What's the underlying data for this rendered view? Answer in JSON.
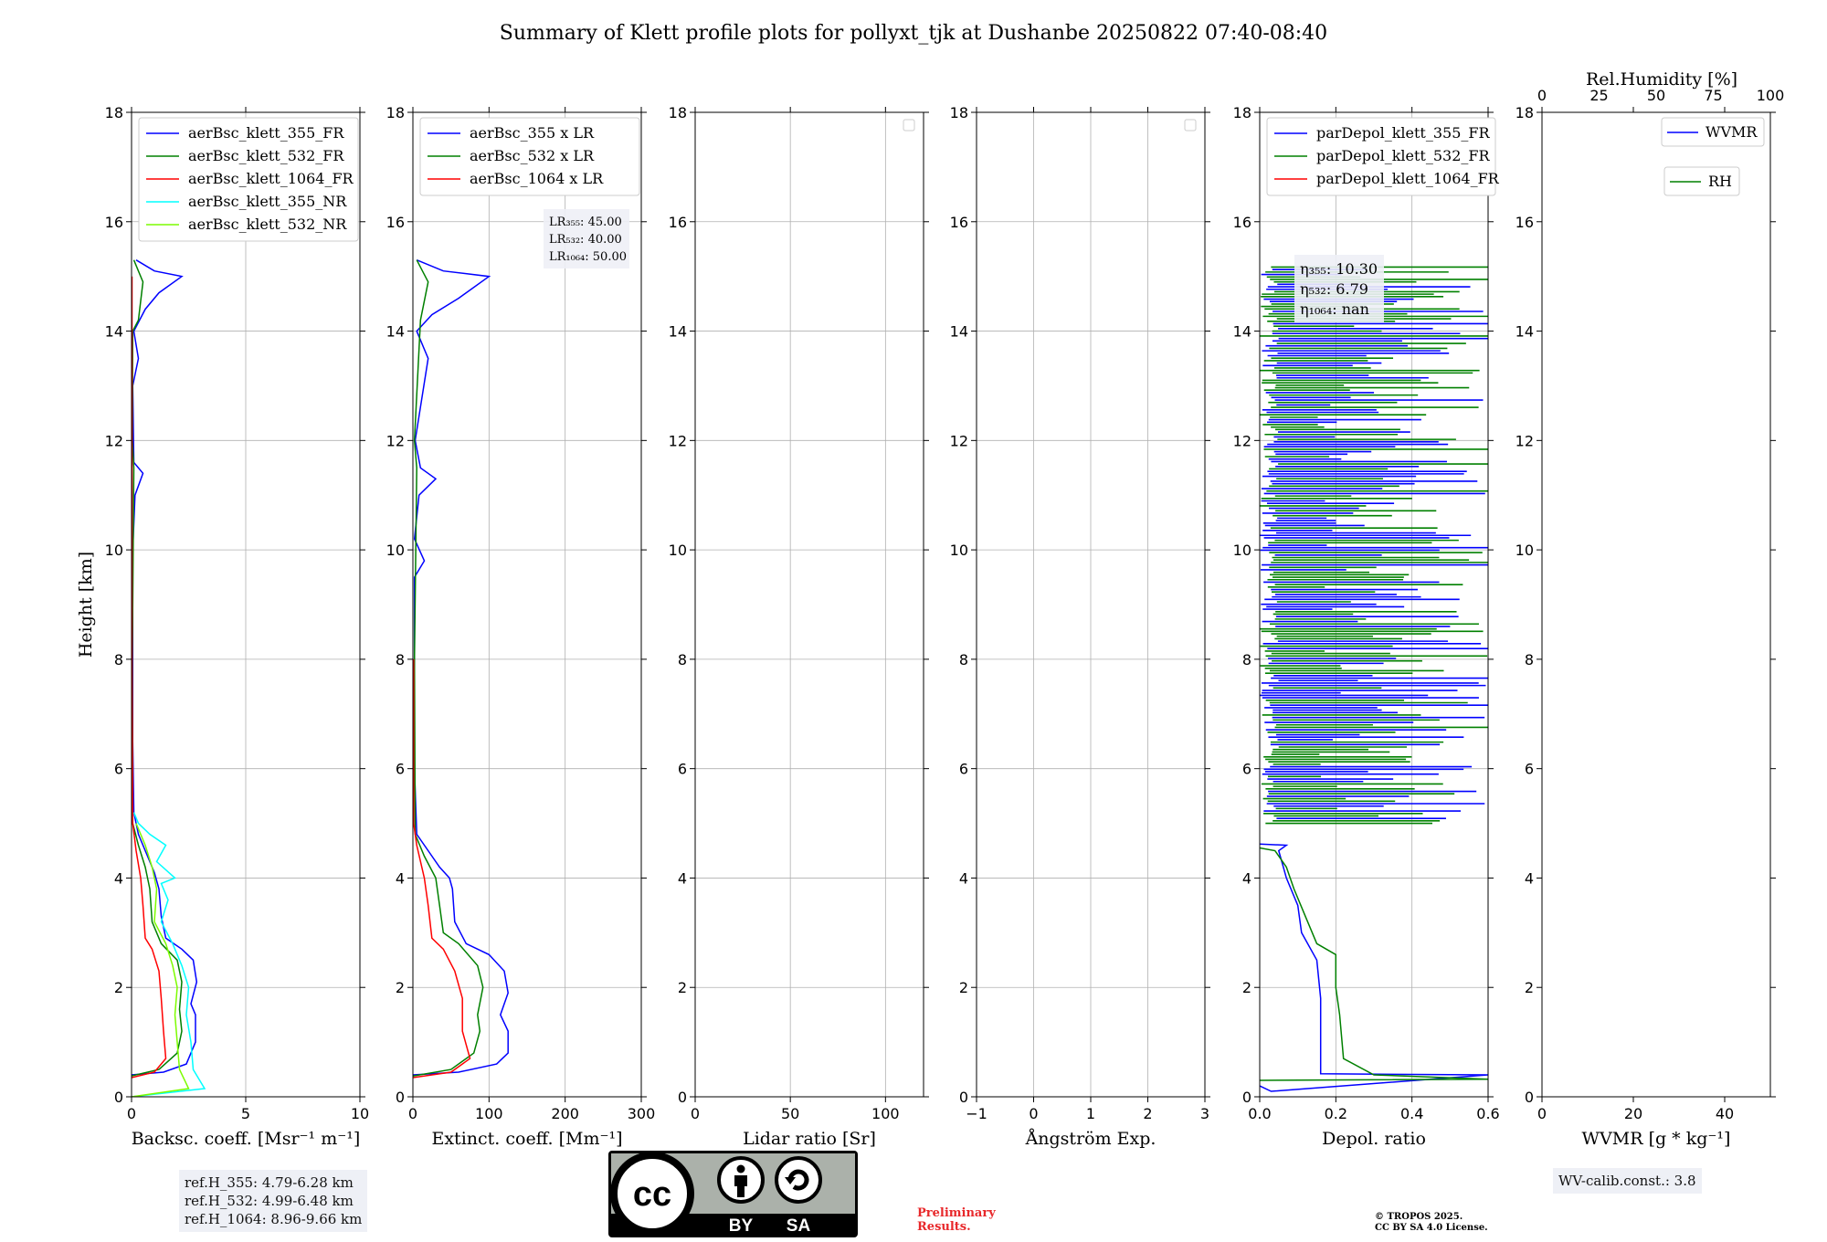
{
  "figure_title": "Summary of Klett profile plots for pollyxt_tjk at Dushanbe 20250822 07:40-08:40",
  "colors": {
    "b355": "#0000ff",
    "g532": "#008000",
    "r1064": "#ff0000",
    "c355nr": "#00ffff",
    "lg532nr": "#7cfc00"
  },
  "chart_data": [
    {
      "type": "line",
      "xlabel": "Backsc. coeff. [Msr⁻¹ m⁻¹]",
      "ylabel": "Height [km]",
      "xlim": [
        0,
        10
      ],
      "xticks": [
        0,
        5,
        10
      ],
      "ylim": [
        0,
        18
      ],
      "yticks": [
        0,
        2,
        4,
        6,
        8,
        10,
        12,
        14,
        16,
        18
      ],
      "grid": true,
      "legend_location": "upper-left",
      "series": [
        {
          "name": "aerBsc_klett_355_FR",
          "color": "#0000ff",
          "points": [
            [
              0,
              0.4
            ],
            [
              1.4,
              0.45
            ],
            [
              2.4,
              0.6
            ],
            [
              2.8,
              1.0
            ],
            [
              2.8,
              1.5
            ],
            [
              2.6,
              1.7
            ],
            [
              2.85,
              2.1
            ],
            [
              2.7,
              2.5
            ],
            [
              2.2,
              2.7
            ],
            [
              1.5,
              2.9
            ],
            [
              1.3,
              3.3
            ],
            [
              1.2,
              3.8
            ],
            [
              1.0,
              4.1
            ],
            [
              0.7,
              4.4
            ],
            [
              0.3,
              4.8
            ],
            [
              0.1,
              5.2
            ],
            [
              0.05,
              6.5
            ],
            [
              0.05,
              10
            ],
            [
              0.15,
              11.0
            ],
            [
              0.5,
              11.4
            ],
            [
              0.1,
              11.6
            ],
            [
              0.05,
              13
            ],
            [
              0.3,
              13.5
            ],
            [
              0.1,
              14.0
            ],
            [
              0.6,
              14.4
            ],
            [
              1.2,
              14.7
            ],
            [
              2.2,
              15.0
            ],
            [
              1.0,
              15.1
            ],
            [
              0.2,
              15.3
            ]
          ]
        },
        {
          "name": "aerBsc_klett_532_FR",
          "color": "#008000",
          "points": [
            [
              0,
              0.38
            ],
            [
              1.2,
              0.5
            ],
            [
              2.0,
              0.8
            ],
            [
              2.2,
              1.2
            ],
            [
              2.1,
              1.6
            ],
            [
              2.2,
              2.1
            ],
            [
              2.0,
              2.5
            ],
            [
              1.3,
              2.8
            ],
            [
              0.9,
              3.2
            ],
            [
              0.8,
              3.8
            ],
            [
              0.6,
              4.2
            ],
            [
              0.3,
              4.6
            ],
            [
              0.05,
              5.0
            ],
            [
              0.03,
              8
            ],
            [
              0.1,
              11.5
            ],
            [
              0.03,
              12
            ],
            [
              0.05,
              14
            ],
            [
              0.3,
              14.2
            ],
            [
              0.5,
              14.9
            ],
            [
              0.1,
              15.3
            ]
          ]
        },
        {
          "name": "aerBsc_klett_1064_FR",
          "color": "#ff0000",
          "points": [
            [
              0,
              0.35
            ],
            [
              1.0,
              0.45
            ],
            [
              1.5,
              0.7
            ],
            [
              1.4,
              1.2
            ],
            [
              1.3,
              1.8
            ],
            [
              1.2,
              2.3
            ],
            [
              0.9,
              2.7
            ],
            [
              0.6,
              2.9
            ],
            [
              0.5,
              3.5
            ],
            [
              0.4,
              4.0
            ],
            [
              0.2,
              4.5
            ],
            [
              0.05,
              5.0
            ],
            [
              0.02,
              8
            ],
            [
              0.02,
              15
            ]
          ]
        },
        {
          "name": "aerBsc_klett_355_NR",
          "color": "#00ffff",
          "points": [
            [
              0,
              0.0
            ],
            [
              3.2,
              0.15
            ],
            [
              2.7,
              0.5
            ],
            [
              2.6,
              1.0
            ],
            [
              2.4,
              1.5
            ],
            [
              2.5,
              2.0
            ],
            [
              2.2,
              2.4
            ],
            [
              1.8,
              2.8
            ],
            [
              1.3,
              3.2
            ],
            [
              1.6,
              3.6
            ],
            [
              1.3,
              3.9
            ],
            [
              1.9,
              4.0
            ],
            [
              1.1,
              4.3
            ],
            [
              1.5,
              4.6
            ],
            [
              0.8,
              4.8
            ],
            [
              0.3,
              5.0
            ],
            [
              0.1,
              5.2
            ]
          ]
        },
        {
          "name": "aerBsc_klett_532_NR",
          "color": "#7cfc00",
          "points": [
            [
              0,
              0.0
            ],
            [
              2.5,
              0.15
            ],
            [
              2.1,
              0.5
            ],
            [
              2.0,
              1.0
            ],
            [
              1.9,
              1.5
            ],
            [
              2.0,
              2.0
            ],
            [
              1.8,
              2.4
            ],
            [
              1.5,
              2.8
            ],
            [
              1.0,
              3.2
            ],
            [
              1.1,
              3.8
            ],
            [
              0.9,
              4.2
            ],
            [
              0.6,
              4.6
            ],
            [
              0.2,
              5.0
            ]
          ]
        }
      ]
    },
    {
      "type": "line",
      "xlabel": "Extinct. coeff. [Mm⁻¹]",
      "xlim": [
        0,
        300
      ],
      "xticks": [
        0,
        100,
        200,
        300
      ],
      "ylim": [
        0,
        18
      ],
      "yticks": [
        0,
        2,
        4,
        6,
        8,
        10,
        12,
        14,
        16,
        18
      ],
      "grid": true,
      "legend_location": "upper-left",
      "series": [
        {
          "name": "aerBsc_355 x LR",
          "color": "#0000ff",
          "points": [
            [
              0,
              0.4
            ],
            [
              60,
              0.45
            ],
            [
              110,
              0.6
            ],
            [
              125,
              0.8
            ],
            [
              125,
              1.2
            ],
            [
              115,
              1.5
            ],
            [
              125,
              1.9
            ],
            [
              120,
              2.3
            ],
            [
              100,
              2.6
            ],
            [
              70,
              2.8
            ],
            [
              55,
              3.2
            ],
            [
              52,
              3.8
            ],
            [
              48,
              4.0
            ],
            [
              35,
              4.2
            ],
            [
              20,
              4.5
            ],
            [
              5,
              4.8
            ],
            [
              2,
              6
            ],
            [
              2,
              9.5
            ],
            [
              15,
              9.8
            ],
            [
              2,
              10.2
            ],
            [
              8,
              11.0
            ],
            [
              30,
              11.3
            ],
            [
              10,
              11.5
            ],
            [
              3,
              12
            ],
            [
              20,
              13.5
            ],
            [
              5,
              14
            ],
            [
              25,
              14.3
            ],
            [
              60,
              14.6
            ],
            [
              100,
              15.0
            ],
            [
              40,
              15.1
            ],
            [
              5,
              15.3
            ]
          ]
        },
        {
          "name": "aerBsc_532 x LR",
          "color": "#008000",
          "points": [
            [
              0,
              0.38
            ],
            [
              50,
              0.5
            ],
            [
              80,
              0.8
            ],
            [
              88,
              1.2
            ],
            [
              85,
              1.5
            ],
            [
              92,
              2.0
            ],
            [
              85,
              2.4
            ],
            [
              60,
              2.8
            ],
            [
              40,
              3.0
            ],
            [
              35,
              3.5
            ],
            [
              30,
              4.0
            ],
            [
              15,
              4.4
            ],
            [
              3,
              4.8
            ],
            [
              2,
              8
            ],
            [
              5,
              11.5
            ],
            [
              2,
              12
            ],
            [
              10,
              14.2
            ],
            [
              20,
              14.9
            ],
            [
              5,
              15.3
            ]
          ]
        },
        {
          "name": "aerBsc_1064 x LR",
          "color": "#ff0000",
          "points": [
            [
              0,
              0.35
            ],
            [
              50,
              0.45
            ],
            [
              75,
              0.7
            ],
            [
              65,
              1.2
            ],
            [
              65,
              1.8
            ],
            [
              55,
              2.3
            ],
            [
              40,
              2.7
            ],
            [
              25,
              2.9
            ],
            [
              20,
              3.5
            ],
            [
              15,
              4.0
            ],
            [
              5,
              4.6
            ],
            [
              1,
              5.0
            ],
            [
              1,
              8
            ]
          ]
        }
      ],
      "annotation": [
        "LR₃₅₅: 45.00",
        "LR₅₃₂: 40.00",
        "LR₁₀₆₄: 50.00"
      ]
    },
    {
      "type": "line",
      "xlabel": "Lidar ratio [Sr]",
      "xlim": [
        0,
        120
      ],
      "xticks": [
        0,
        50,
        100
      ],
      "ylim": [
        0,
        18
      ],
      "yticks": [
        0,
        2,
        4,
        6,
        8,
        10,
        12,
        14,
        16,
        18
      ],
      "grid": true,
      "legend_location": "upper-right",
      "series": []
    },
    {
      "type": "line",
      "xlabel": "Ångström Exp.",
      "xlim": [
        -1,
        3
      ],
      "xticks": [
        -1,
        0,
        1,
        2,
        3
      ],
      "ylim": [
        0,
        18
      ],
      "yticks": [
        0,
        2,
        4,
        6,
        8,
        10,
        12,
        14,
        16,
        18
      ],
      "grid": true,
      "legend_location": "upper-right",
      "series": []
    },
    {
      "type": "line",
      "xlabel": "Depol. ratio",
      "xlim": [
        0,
        0.6
      ],
      "xticks": [
        0.0,
        0.2,
        0.4,
        0.6
      ],
      "ylim": [
        0,
        18
      ],
      "yticks": [
        0,
        2,
        4,
        6,
        8,
        10,
        12,
        14,
        16,
        18
      ],
      "grid": true,
      "legend_location": "upper-left",
      "noise_height_range": [
        5.0,
        15.2
      ],
      "series": [
        {
          "name": "parDepol_klett_355_FR",
          "color": "#0000ff",
          "points": [
            [
              0,
              0.2
            ],
            [
              0.03,
              0.1
            ],
            [
              0.6,
              0.4
            ],
            [
              0.16,
              0.42
            ],
            [
              0.16,
              1.0
            ],
            [
              0.16,
              1.8
            ],
            [
              0.15,
              2.5
            ],
            [
              0.11,
              3.0
            ],
            [
              0.1,
              3.5
            ],
            [
              0.07,
              4.0
            ],
            [
              0.05,
              4.5
            ],
            [
              0.07,
              4.6
            ],
            [
              0.0,
              4.62
            ]
          ]
        },
        {
          "name": "parDepol_klett_532_FR",
          "color": "#008000",
          "points": [
            [
              0,
              0.3
            ],
            [
              0.6,
              0.32
            ],
            [
              0.3,
              0.4
            ],
            [
              0.22,
              0.7
            ],
            [
              0.21,
              1.5
            ],
            [
              0.2,
              2.0
            ],
            [
              0.2,
              2.6
            ],
            [
              0.15,
              2.8
            ],
            [
              0.12,
              3.3
            ],
            [
              0.09,
              3.8
            ],
            [
              0.07,
              4.2
            ],
            [
              0.04,
              4.5
            ],
            [
              0.0,
              4.55
            ]
          ]
        },
        {
          "name": "parDepol_klett_1064_FR",
          "color": "#ff0000",
          "points": []
        }
      ],
      "annotation": [
        "η₃₅₅: 10.30",
        "η₅₃₂: 6.79",
        "η₁₀₆₄: nan"
      ]
    },
    {
      "type": "line",
      "xlabel": "WVMR [g * kg⁻¹]",
      "x2label": "Rel.Humidity [%]",
      "xlim": [
        0,
        50
      ],
      "xticks": [
        0,
        20,
        40
      ],
      "x2lim": [
        0,
        100
      ],
      "x2ticks": [
        0,
        25,
        50,
        75,
        100
      ],
      "ylim": [
        0,
        18
      ],
      "yticks": [
        0,
        2,
        4,
        6,
        8,
        10,
        12,
        14,
        16,
        18
      ],
      "grid": false,
      "legend_location": "upper-right",
      "series": [
        {
          "name": "WVMR",
          "color": "#0000ff",
          "points": []
        },
        {
          "name": "RH",
          "color": "#008000",
          "points": []
        }
      ]
    }
  ],
  "notes": {
    "refh": [
      "ref.H_355: 4.79-6.28 km",
      "ref.H_532: 4.99-6.48 km",
      "ref.H_1064: 8.96-9.66 km"
    ],
    "wv_calib": "WV-calib.const.: 3.8",
    "preliminary": [
      "Preliminary",
      "Results."
    ],
    "copyright": [
      "© TROPOS 2025.",
      "CC BY SA 4.0 License."
    ],
    "license_badge": {
      "icons": [
        "cc-icon",
        "by-person-icon",
        "sa-recycle-icon"
      ],
      "labels": [
        "BY",
        "SA"
      ]
    }
  }
}
